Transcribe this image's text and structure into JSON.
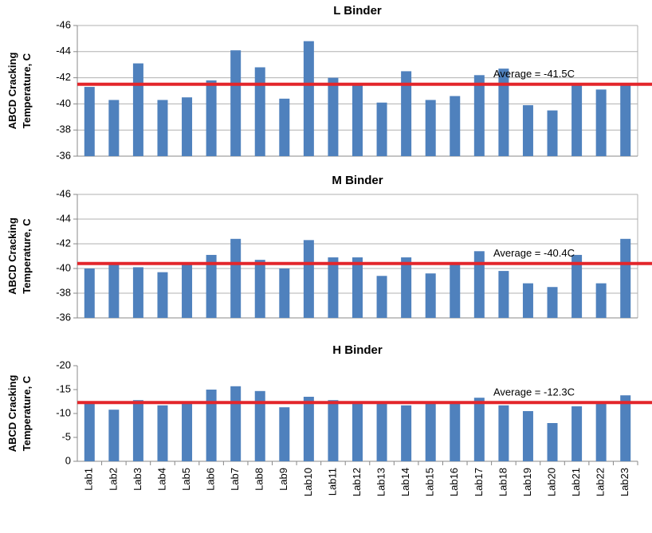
{
  "chart_data": [
    {
      "type": "bar",
      "title": "L Binder",
      "ylabel": [
        "ABCD Cracking",
        "Temperature, C"
      ],
      "values": [
        -41.3,
        -40.3,
        -43.1,
        -40.3,
        -40.5,
        -41.8,
        -44.1,
        -42.8,
        -40.4,
        -44.8,
        -42.0,
        -41.4,
        -40.1,
        -42.5,
        -40.3,
        -40.6,
        -42.2,
        -42.7,
        -39.9,
        -39.5,
        -41.6,
        -41.1,
        -41.5
      ],
      "color": "#4f81bd",
      "ylim": [
        -36,
        -46
      ],
      "yticks": [
        -36,
        -38,
        -40,
        -42,
        -44,
        -46
      ],
      "grid": true,
      "average": {
        "value": -41.5,
        "label": "Average = -41.5C",
        "color": "#e3262b"
      }
    },
    {
      "type": "bar",
      "title": "M Binder",
      "ylabel": [
        "ABCD Cracking",
        "Temperature, C"
      ],
      "values": [
        -40.0,
        -40.5,
        -40.1,
        -39.7,
        -40.4,
        -41.1,
        -42.4,
        -40.7,
        -40.0,
        -42.3,
        -40.9,
        -40.9,
        -39.4,
        -40.9,
        -39.6,
        -40.4,
        -41.4,
        -39.8,
        -38.8,
        -38.5,
        -41.1,
        -38.8,
        -42.4
      ],
      "color": "#4f81bd",
      "ylim": [
        -36,
        -46
      ],
      "yticks": [
        -36,
        -38,
        -40,
        -42,
        -44,
        -46
      ],
      "grid": true,
      "average": {
        "value": -40.4,
        "label": "Average = -40.4C",
        "color": "#e3262b"
      }
    },
    {
      "type": "bar",
      "title": "H Binder",
      "ylabel": [
        "ABCD Cracking",
        "Temperature, C"
      ],
      "categories": [
        "Lab1",
        "Lab2",
        "Lab3",
        "Lab4",
        "Lab5",
        "Lab6",
        "Lab7",
        "Lab8",
        "Lab9",
        "Lab10",
        "Lab11",
        "Lab12",
        "Lab13",
        "Lab14",
        "Lab15",
        "Lab16",
        "Lab17",
        "Lab18",
        "Lab19",
        "Lab20",
        "Lab21",
        "Lab22",
        "Lab23"
      ],
      "values": [
        -12.0,
        -10.8,
        -12.8,
        -11.7,
        -12.0,
        -15.0,
        -15.7,
        -14.7,
        -11.3,
        -13.5,
        -12.8,
        -12.2,
        -12.2,
        -11.7,
        -12.2,
        -12.2,
        -13.3,
        -11.7,
        -10.5,
        -8.0,
        -11.5,
        -12.2,
        -13.8
      ],
      "color": "#4f81bd",
      "ylim": [
        0,
        -20
      ],
      "yticks": [
        0,
        -5,
        -10,
        -15,
        -20
      ],
      "grid": false,
      "average": {
        "value": -12.3,
        "label": "Average = -12.3C",
        "color": "#e3262b"
      }
    }
  ]
}
